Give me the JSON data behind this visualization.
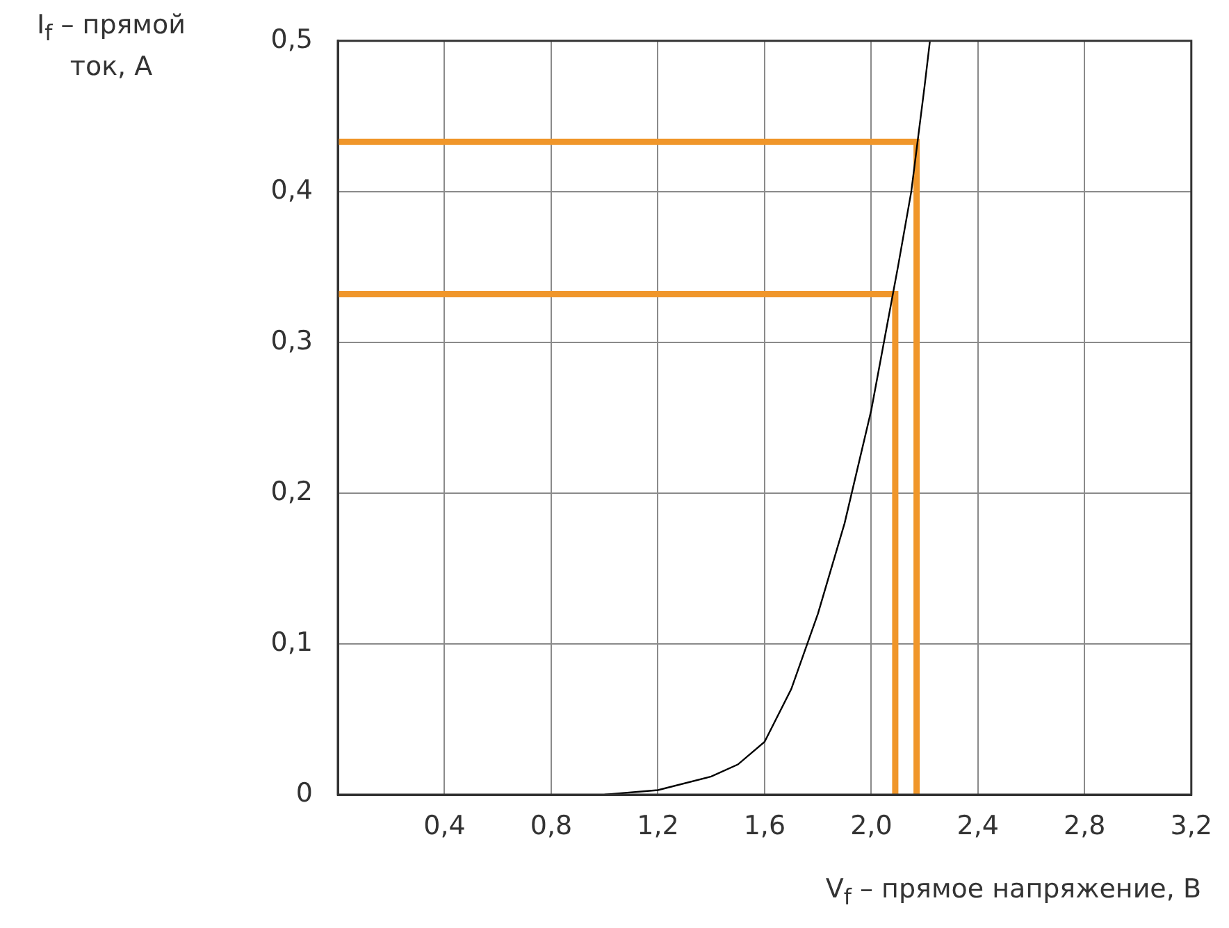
{
  "chart_data": {
    "type": "line",
    "xlabel": "V$_{f}$ – прямое напряжение, В",
    "ylabel": "I$_{f}$ – прямой ток, А",
    "series": [
      {
        "color": "#000000",
        "x": [
          1.0,
          1.2,
          1.4,
          1.5,
          1.6,
          1.7,
          1.8,
          1.9,
          2.0,
          2.1,
          2.15,
          2.2,
          2.22
        ],
        "values": [
          0,
          0.003,
          0.012,
          0.02,
          0.035,
          0.07,
          0.12,
          0.18,
          0.255,
          0.35,
          0.4,
          0.47,
          0.5
        ]
      },
      {
        "color": "#f0962a",
        "x": [
          0,
          2.17,
          2.17
        ],
        "values": [
          0.433,
          0.433,
          0
        ]
      },
      {
        "color": "#f0962a",
        "x": [
          0,
          2.09,
          2.09
        ],
        "values": [
          0.332,
          0.332,
          0
        ]
      }
    ],
    "xlim": [
      0,
      3.2
    ],
    "xticks": [
      {
        "value": 0,
        "label": null
      },
      {
        "value": 0.4,
        "label": "0,4"
      },
      {
        "value": 0.8,
        "label": "0,8"
      },
      {
        "value": 1.2,
        "label": "1,2"
      },
      {
        "value": 1.6,
        "label": "1,6"
      },
      {
        "value": 2.0,
        "label": "2,0"
      },
      {
        "value": 2.4,
        "label": "2,4"
      },
      {
        "value": 2.8,
        "label": "2,8"
      },
      {
        "value": 3.2,
        "label": "3,2"
      }
    ],
    "ylim": [
      0,
      0.5
    ],
    "yticks": [
      0,
      {
        "value": 0.1,
        "label": "0,1"
      },
      {
        "value": 0.2,
        "label": "0,2"
      },
      {
        "value": 0.3,
        "label": "0,3"
      },
      {
        "value": 0.4,
        "label": "0,4"
      },
      {
        "value": 0.5,
        "label": "0,5"
      }
    ],
    "grid": true,
    "legend": false,
    "marker": "none",
    "line_style": "solid"
  }
}
